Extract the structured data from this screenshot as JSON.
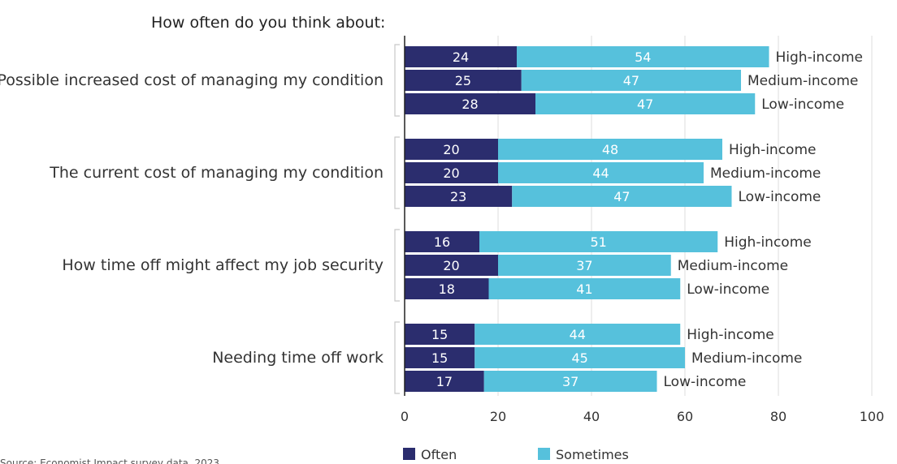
{
  "chart_data": {
    "type": "bar",
    "orientation": "horizontal",
    "stacked": true,
    "title": "How often do you think about:",
    "categories": [
      "Possible increased cost of managing my condition",
      "The current cost of managing my condition",
      "How time off might affect my job security",
      "Needing time off work"
    ],
    "groups": [
      "High-income",
      "Medium-income",
      "Low-income"
    ],
    "series": [
      {
        "name": "Often",
        "color": "#2b2d6e",
        "values": [
          [
            24,
            25,
            28
          ],
          [
            20,
            20,
            23
          ],
          [
            16,
            20,
            18
          ],
          [
            15,
            15,
            17
          ]
        ]
      },
      {
        "name": "Sometimes",
        "color": "#56c1dc",
        "values": [
          [
            54,
            47,
            47
          ],
          [
            48,
            44,
            47
          ],
          [
            51,
            37,
            41
          ],
          [
            44,
            45,
            37
          ]
        ]
      }
    ],
    "xlim": [
      0,
      100
    ],
    "xticks": [
      0,
      20,
      40,
      60,
      80,
      100
    ],
    "grid": true,
    "legend": "bottom",
    "source": "Source: Economist Impact survey data, 2023"
  }
}
